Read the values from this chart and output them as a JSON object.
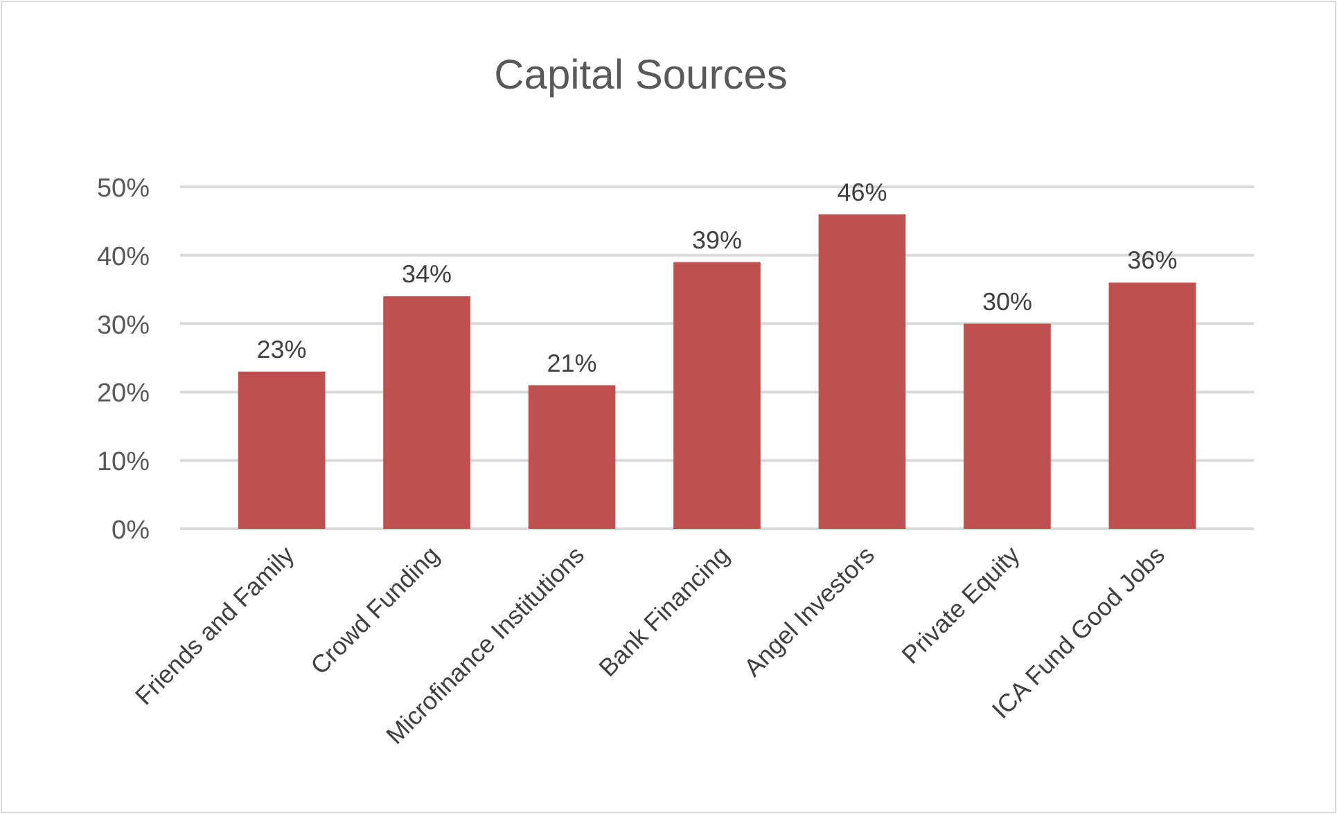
{
  "chart_data": {
    "type": "bar",
    "title": "Capital Sources",
    "categories": [
      "Friends and Family",
      "Crowd Funding",
      "Microfinance Institutions",
      "Bank Financing",
      "Angel Investors",
      "Private Equity",
      "ICA Fund Good Jobs"
    ],
    "values": [
      23,
      34,
      21,
      39,
      46,
      30,
      36
    ],
    "value_labels": [
      "23%",
      "34%",
      "21%",
      "39%",
      "46%",
      "30%",
      "36%"
    ],
    "color": "#c0504d",
    "ylim": [
      0,
      50
    ],
    "yticks": [
      {
        "value": 0,
        "label": "0%"
      },
      {
        "value": 10,
        "label": "10%"
      },
      {
        "value": 20,
        "label": "20%"
      },
      {
        "value": 30,
        "label": "30%"
      },
      {
        "value": 40,
        "label": "40%"
      },
      {
        "value": 50,
        "label": "50%"
      }
    ],
    "grid": "y"
  }
}
